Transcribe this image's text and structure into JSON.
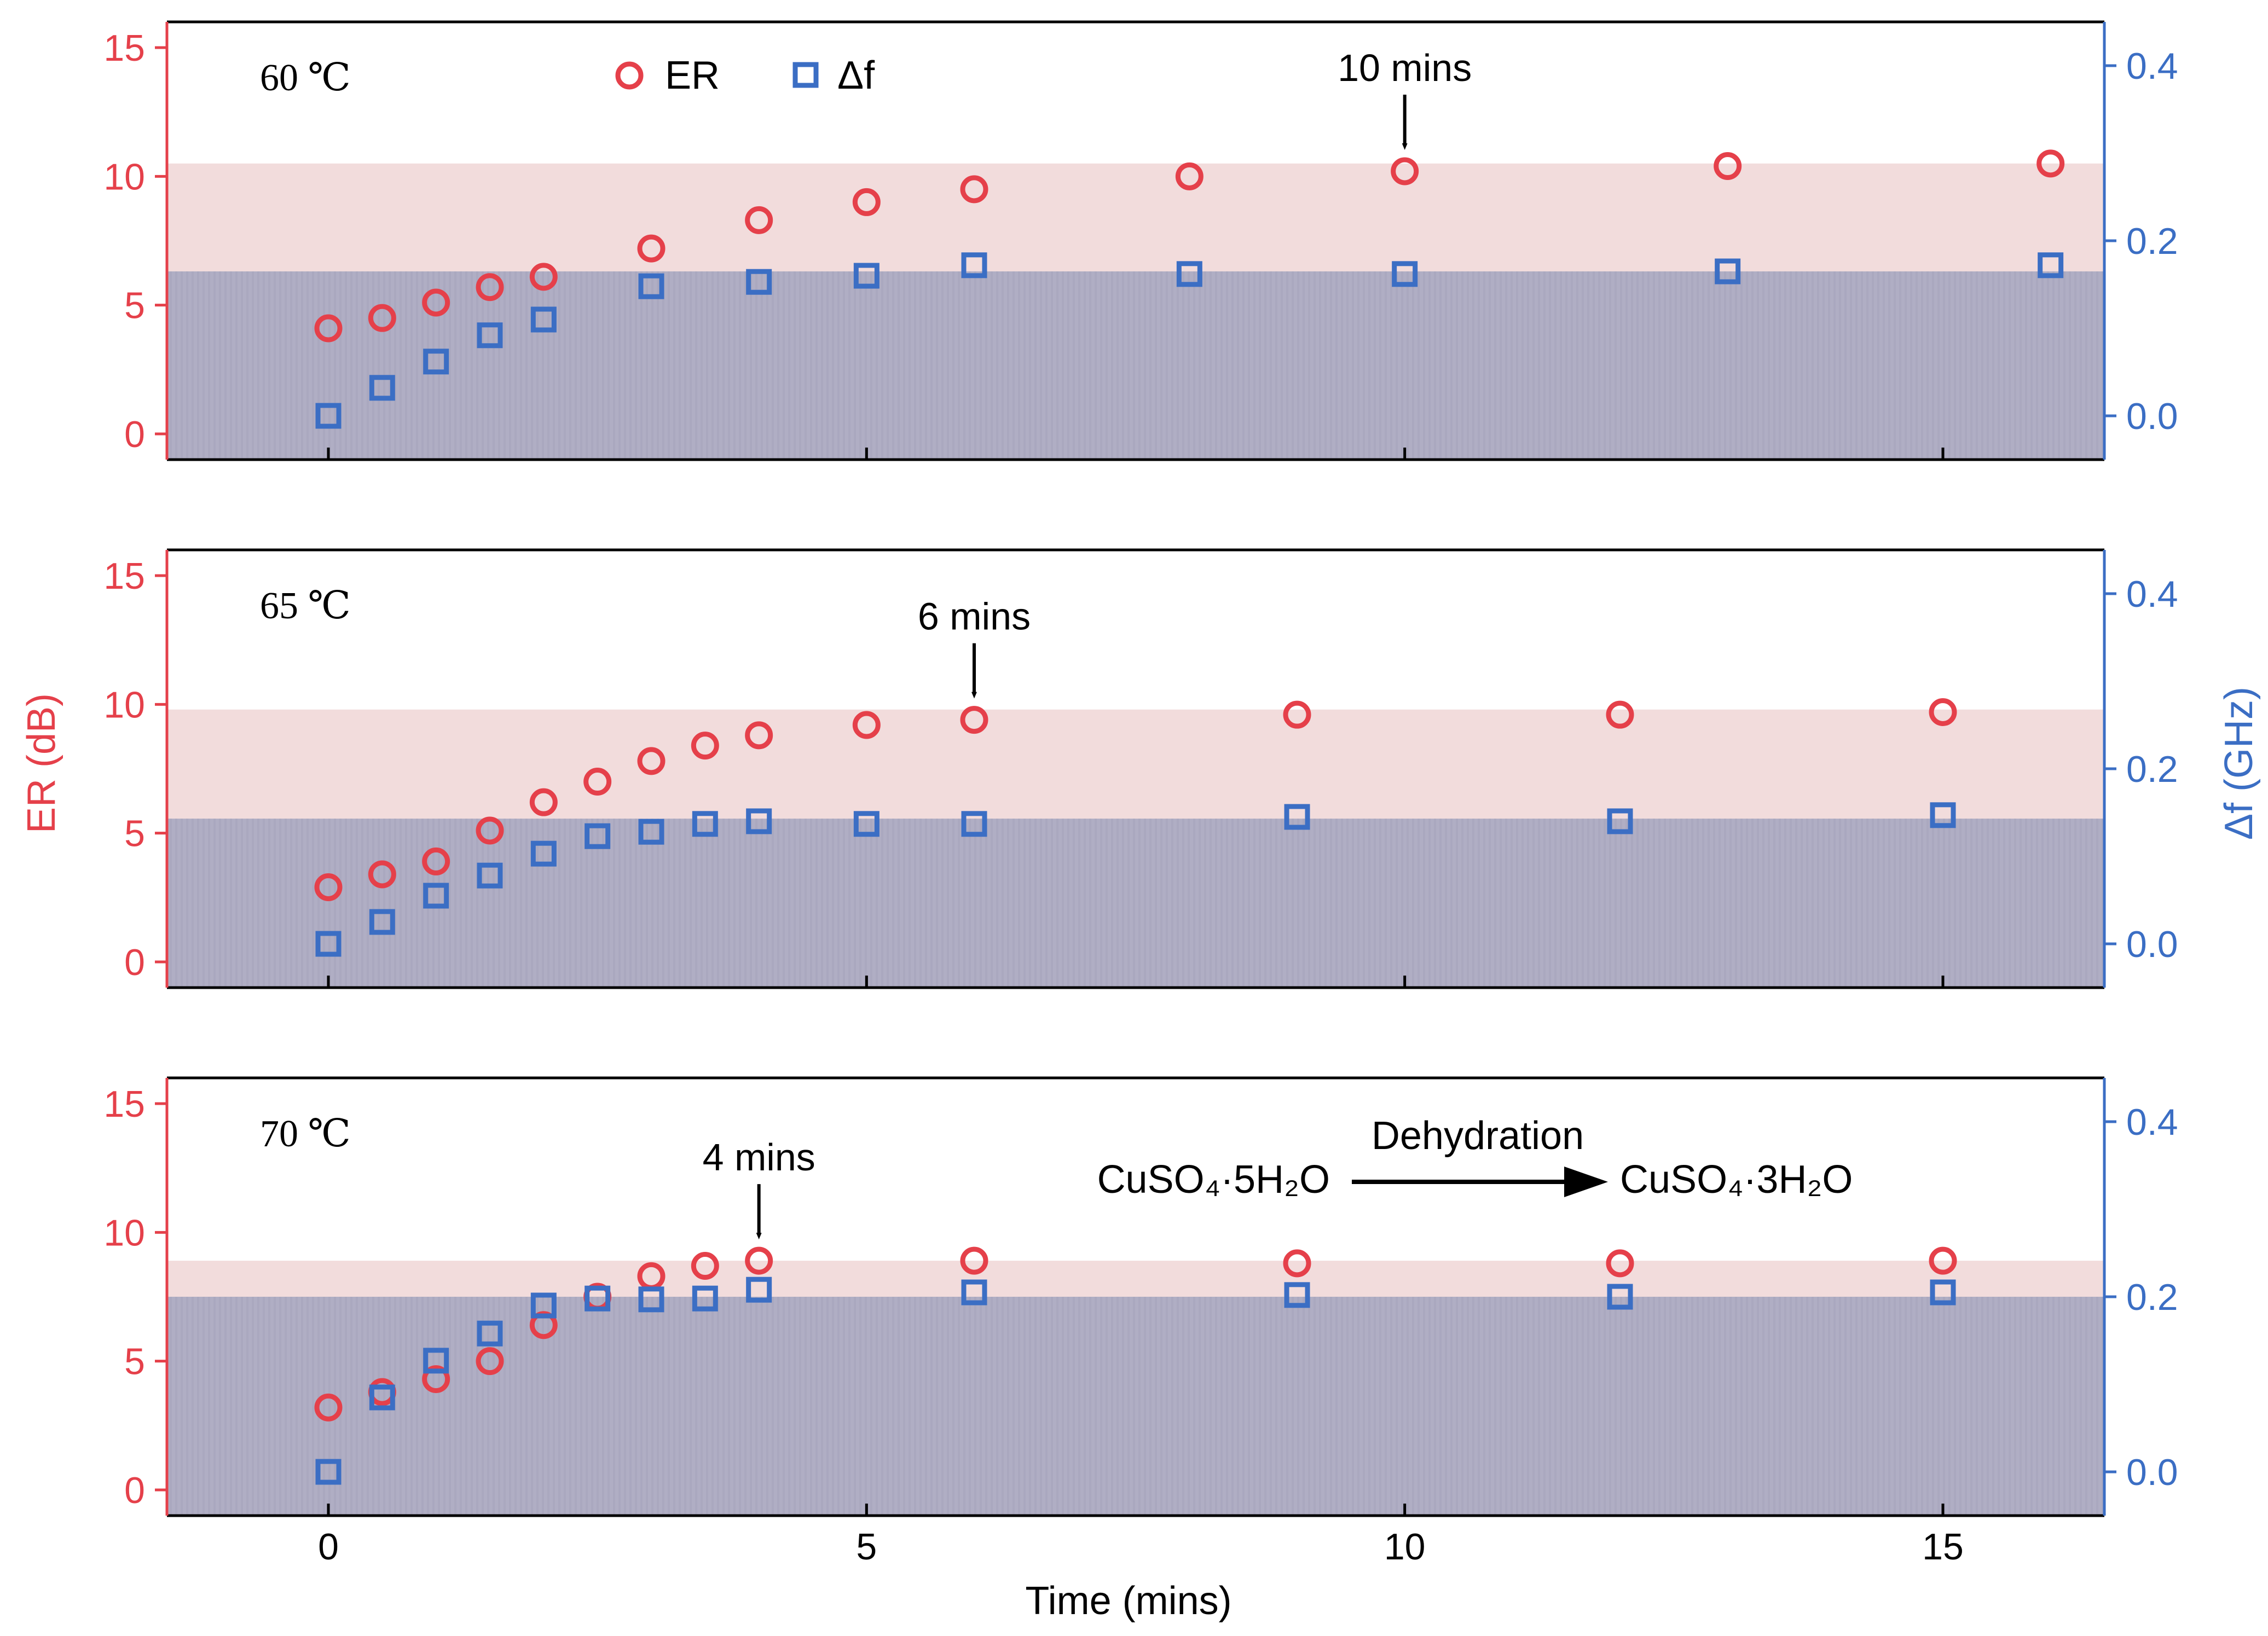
{
  "figure": {
    "xlabel": "Time (mins)",
    "ylabel_left": "ER (dB)",
    "ylabel_right": "Δf (GHz)",
    "legend": {
      "er_label": "ER",
      "df_label": "Δf",
      "placement": "top-left"
    },
    "colors": {
      "er": "#e5404a",
      "df": "#3b6ec4",
      "er_band": "#f2dcdc",
      "df_band": "#b0aec4",
      "axis": "#000000"
    },
    "annotation": {
      "left": "CuSO₄·5H₂O",
      "right": "CuSO₄·3H₂O",
      "arrow_label": "Dehydration"
    }
  },
  "chart_data": [
    {
      "type": "scatter",
      "panel_label": "60 ℃",
      "arrow": {
        "label": "10 mins",
        "x": 10
      },
      "xlim": [
        -1.5,
        16.5
      ],
      "xticks": [
        0,
        5,
        10,
        15
      ],
      "ylim_left": [
        -1,
        16
      ],
      "yticks_left": [
        0,
        5,
        10,
        15
      ],
      "ylim_right": [
        -0.05,
        0.45
      ],
      "yticks_right": [
        "0.0",
        "0.2",
        "0.4"
      ],
      "er_band_top": 10.5,
      "df_band_top": 0.165,
      "series": [
        {
          "name": "ER",
          "axis": "left",
          "marker": "circle",
          "x": [
            0,
            0.5,
            1,
            1.5,
            2,
            3,
            4,
            5,
            6,
            8,
            10,
            13,
            16
          ],
          "y": [
            4.1,
            4.5,
            5.1,
            5.7,
            6.1,
            7.2,
            8.3,
            9.0,
            9.5,
            10.0,
            10.2,
            10.4,
            10.5
          ]
        },
        {
          "name": "Δf",
          "axis": "right",
          "marker": "square",
          "x": [
            0,
            0.5,
            1,
            1.5,
            2,
            3,
            4,
            5,
            6,
            8,
            10,
            13,
            16
          ],
          "y": [
            0.0,
            0.032,
            0.062,
            0.092,
            0.11,
            0.148,
            0.153,
            0.16,
            0.172,
            0.162,
            0.162,
            0.165,
            0.172
          ]
        }
      ]
    },
    {
      "type": "scatter",
      "panel_label": "65 ℃",
      "arrow": {
        "label": "6 mins",
        "x": 6
      },
      "xlim": [
        -1.5,
        16.5
      ],
      "xticks": [
        0,
        5,
        10,
        15
      ],
      "ylim_left": [
        -1,
        16
      ],
      "yticks_left": [
        0,
        5,
        10,
        15
      ],
      "ylim_right": [
        -0.05,
        0.45
      ],
      "yticks_right": [
        "0.0",
        "0.2",
        "0.4"
      ],
      "er_band_top": 9.8,
      "df_band_top": 0.143,
      "series": [
        {
          "name": "ER",
          "axis": "left",
          "marker": "circle",
          "x": [
            0,
            0.5,
            1,
            1.5,
            2,
            2.5,
            3,
            3.5,
            4,
            5,
            6,
            9,
            12,
            15
          ],
          "y": [
            2.9,
            3.4,
            3.9,
            5.1,
            6.2,
            7.0,
            7.8,
            8.4,
            8.8,
            9.2,
            9.4,
            9.6,
            9.6,
            9.7
          ]
        },
        {
          "name": "Δf",
          "axis": "right",
          "marker": "square",
          "x": [
            0,
            0.5,
            1,
            1.5,
            2,
            2.5,
            3,
            3.5,
            4,
            5,
            6,
            9,
            12,
            15
          ],
          "y": [
            0.0,
            0.025,
            0.055,
            0.078,
            0.103,
            0.123,
            0.128,
            0.137,
            0.14,
            0.137,
            0.137,
            0.145,
            0.14,
            0.147
          ]
        }
      ]
    },
    {
      "type": "scatter",
      "panel_label": "70 ℃",
      "arrow": {
        "label": "4 mins",
        "x": 4
      },
      "xlim": [
        -1.5,
        16.5
      ],
      "xticks": [
        0,
        5,
        10,
        15
      ],
      "ylim_left": [
        -1,
        16
      ],
      "yticks_left": [
        0,
        5,
        10,
        15
      ],
      "ylim_right": [
        -0.05,
        0.45
      ],
      "yticks_right": [
        "0.0",
        "0.2",
        "0.4"
      ],
      "er_band_top": 8.9,
      "df_band_top": 0.2,
      "series": [
        {
          "name": "ER",
          "axis": "left",
          "marker": "circle",
          "x": [
            0,
            0.5,
            1,
            1.5,
            2,
            2.5,
            3,
            3.5,
            4,
            6,
            9,
            12,
            15
          ],
          "y": [
            3.2,
            3.8,
            4.3,
            5.0,
            6.4,
            7.5,
            8.3,
            8.7,
            8.9,
            8.9,
            8.8,
            8.8,
            8.9
          ]
        },
        {
          "name": "Δf",
          "axis": "right",
          "marker": "square",
          "x": [
            0,
            0.5,
            1,
            1.5,
            2,
            2.5,
            3,
            3.5,
            4,
            6,
            9,
            12,
            15
          ],
          "y": [
            0.0,
            0.085,
            0.127,
            0.158,
            0.19,
            0.198,
            0.197,
            0.198,
            0.208,
            0.205,
            0.202,
            0.2,
            0.205
          ]
        }
      ]
    }
  ]
}
